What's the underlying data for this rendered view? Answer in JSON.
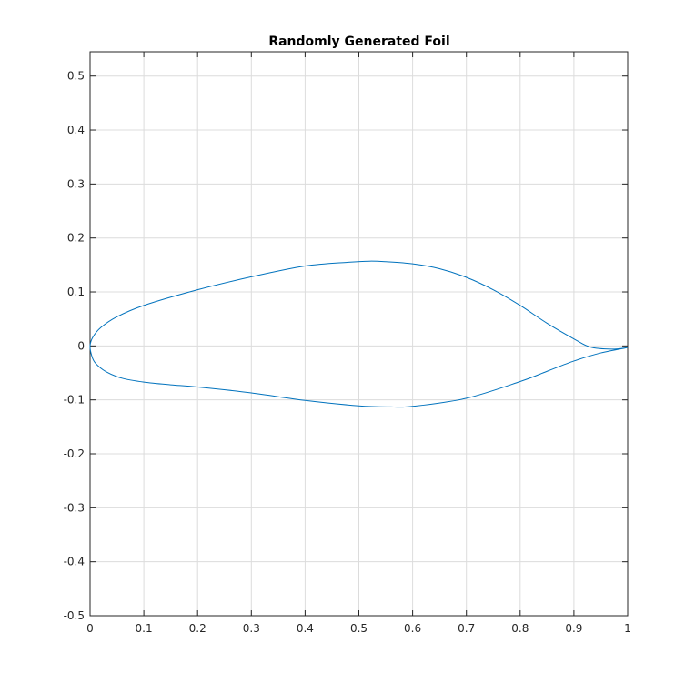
{
  "chart_data": {
    "type": "line",
    "title": "Randomly Generated Foil",
    "xlabel": "",
    "ylabel": "",
    "xlim": [
      0,
      1
    ],
    "ylim": [
      -0.5,
      0.545
    ],
    "grid": true,
    "x_ticks": [
      "0",
      "0.1",
      "0.2",
      "0.3",
      "0.4",
      "0.5",
      "0.6",
      "0.7",
      "0.8",
      "0.9",
      "1"
    ],
    "y_ticks": [
      "0.5",
      "0.4",
      "0.3",
      "0.2",
      "0.1",
      "0",
      "-0.1",
      "-0.2",
      "-0.3",
      "-0.4",
      "-0.5"
    ],
    "line_color": "#0072BD",
    "series": [
      {
        "points": [
          [
            1.0,
            -0.003
          ],
          [
            0.97,
            -0.006
          ],
          [
            0.93,
            -0.002
          ],
          [
            0.9,
            0.013
          ],
          [
            0.85,
            0.042
          ],
          [
            0.8,
            0.075
          ],
          [
            0.75,
            0.104
          ],
          [
            0.7,
            0.127
          ],
          [
            0.65,
            0.143
          ],
          [
            0.6,
            0.152
          ],
          [
            0.55,
            0.156
          ],
          [
            0.52,
            0.157
          ],
          [
            0.48,
            0.155
          ],
          [
            0.4,
            0.148
          ],
          [
            0.3,
            0.128
          ],
          [
            0.2,
            0.104
          ],
          [
            0.1,
            0.075
          ],
          [
            0.05,
            0.054
          ],
          [
            0.02,
            0.034
          ],
          [
            0.005,
            0.016
          ],
          [
            0.0,
            0.0
          ],
          [
            0.003,
            -0.018
          ],
          [
            0.01,
            -0.032
          ],
          [
            0.03,
            -0.048
          ],
          [
            0.06,
            -0.06
          ],
          [
            0.1,
            -0.067
          ],
          [
            0.15,
            -0.072
          ],
          [
            0.2,
            -0.076
          ],
          [
            0.3,
            -0.087
          ],
          [
            0.4,
            -0.101
          ],
          [
            0.5,
            -0.111
          ],
          [
            0.56,
            -0.113
          ],
          [
            0.6,
            -0.112
          ],
          [
            0.7,
            -0.097
          ],
          [
            0.8,
            -0.066
          ],
          [
            0.85,
            -0.047
          ],
          [
            0.9,
            -0.028
          ],
          [
            0.95,
            -0.013
          ],
          [
            1.0,
            -0.003
          ]
        ]
      }
    ]
  }
}
